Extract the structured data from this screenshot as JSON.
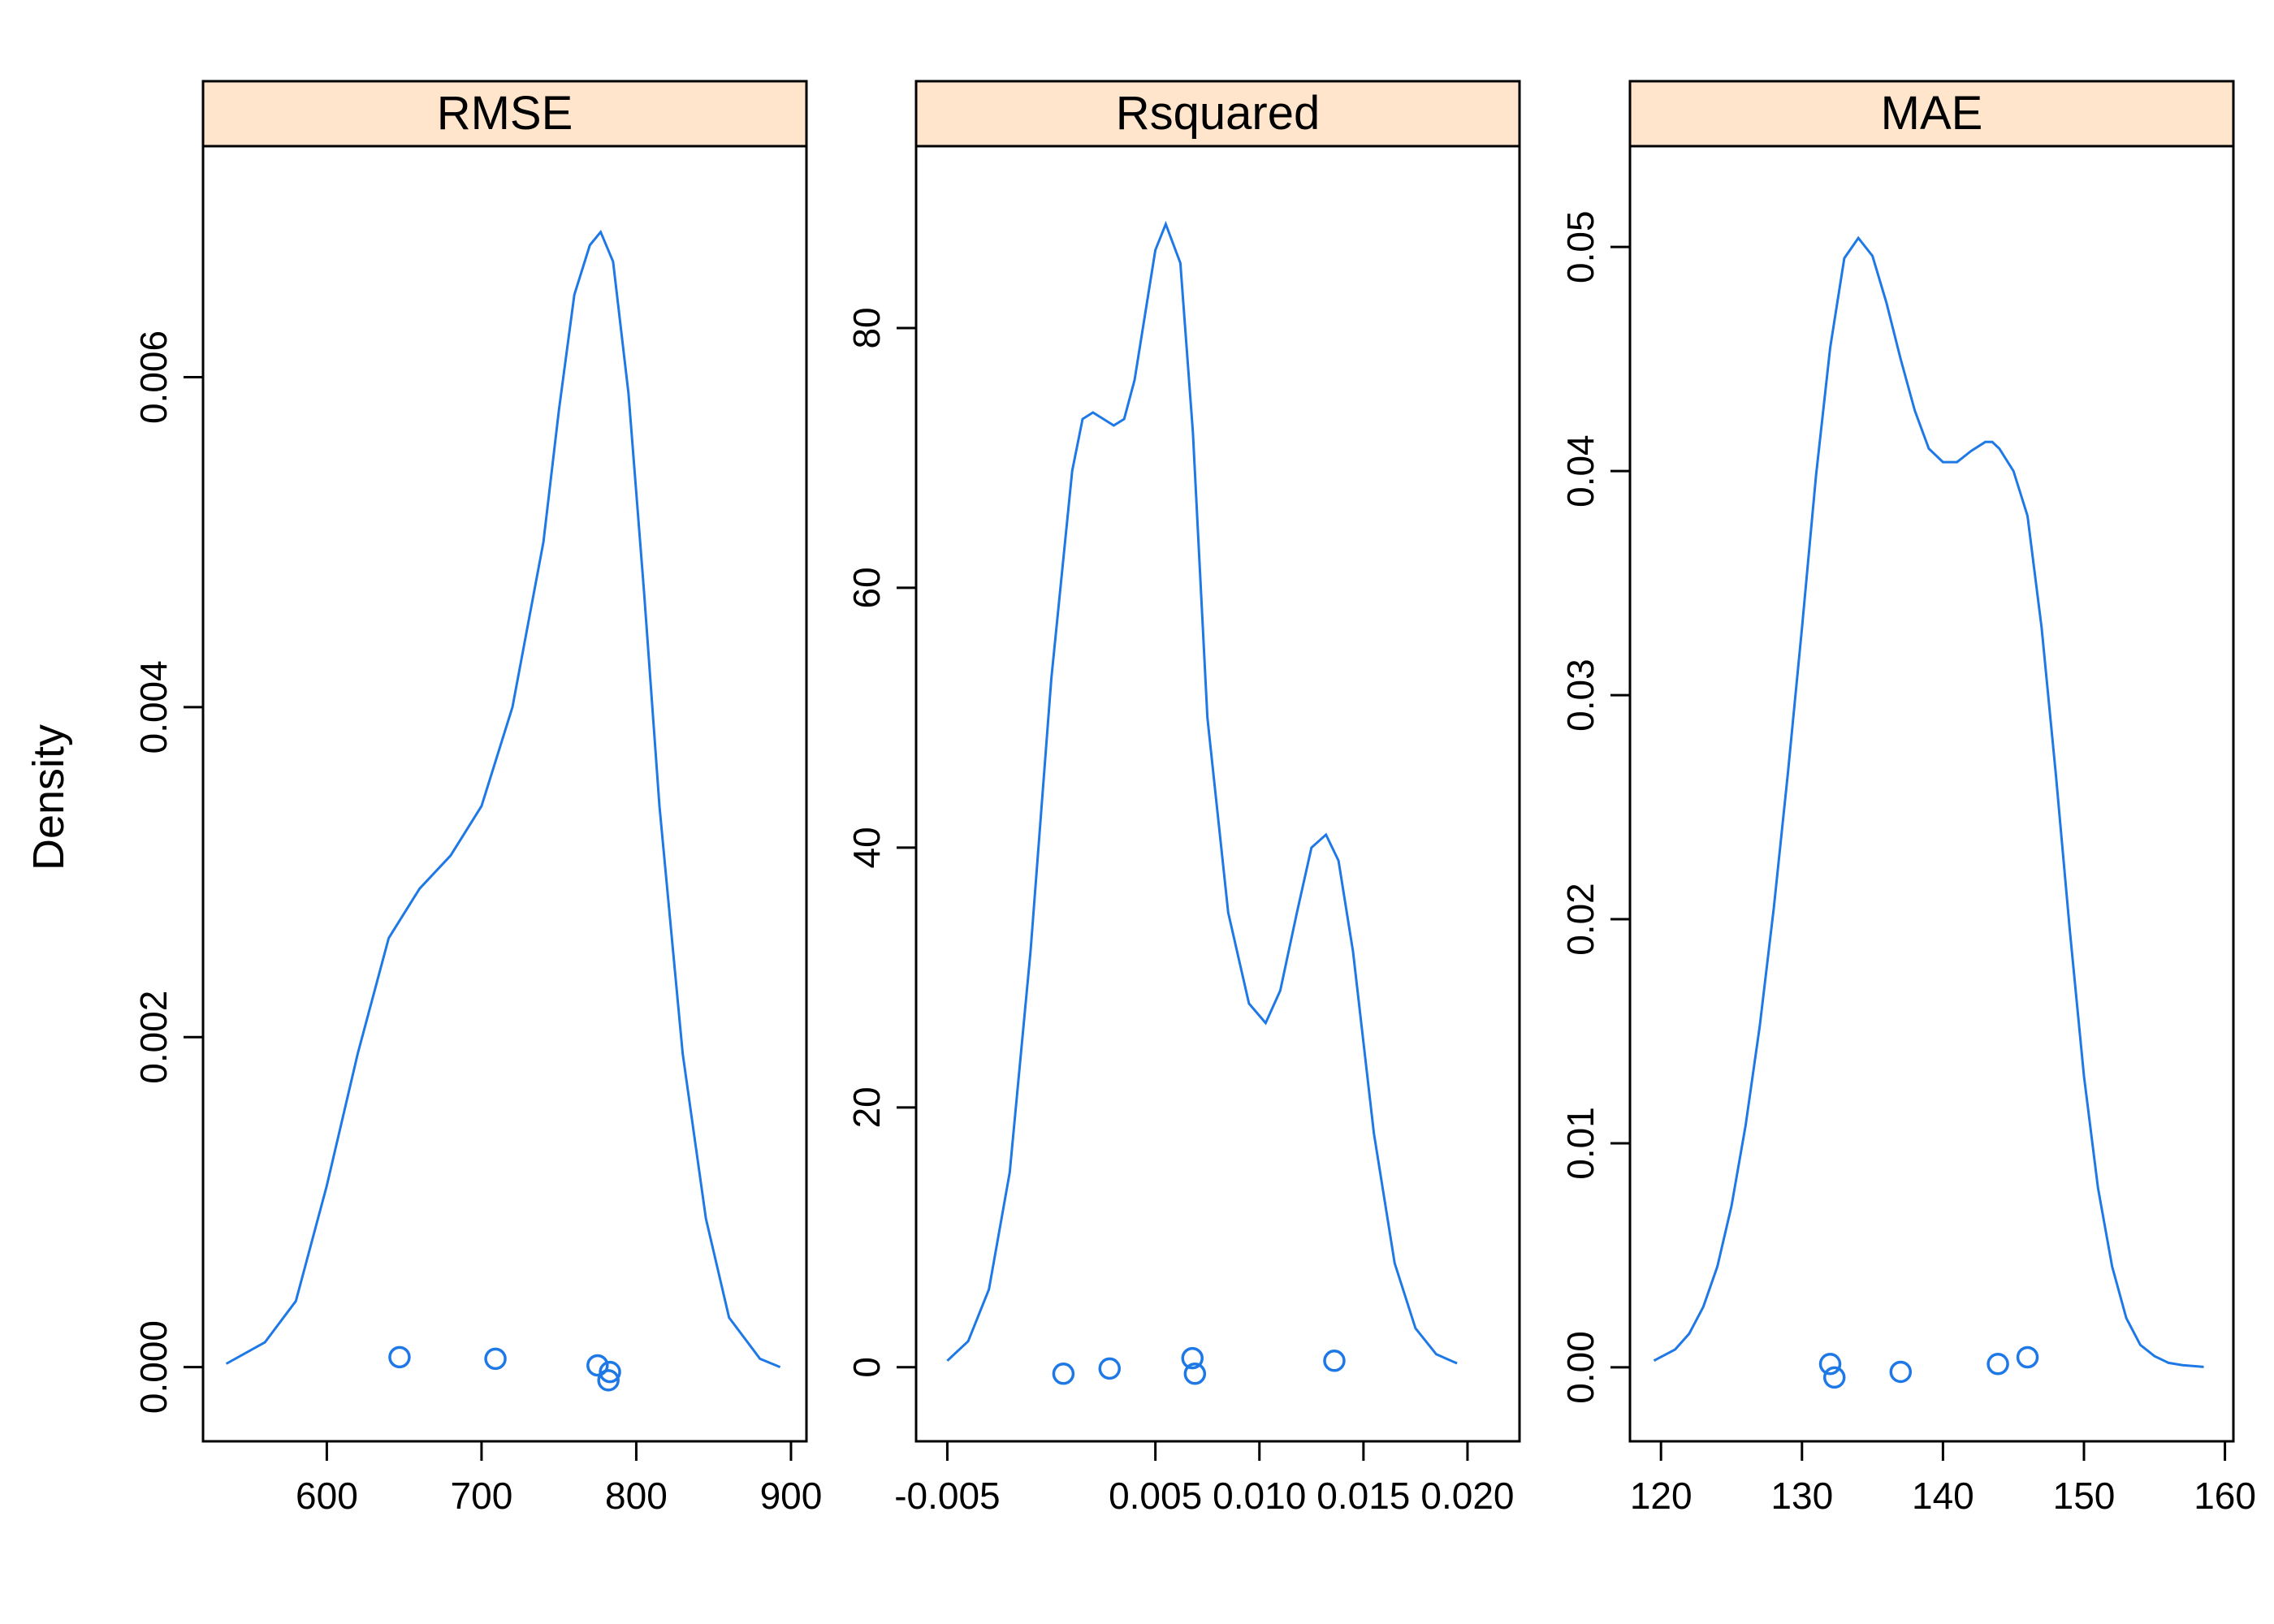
{
  "colors": {
    "curve": "#1E78E6",
    "strip_fill": "#FFE5CC",
    "frame": "#000000",
    "background": "#FFFFFF"
  },
  "chart_data": {
    "type": "line",
    "ylabel": "Density",
    "xlabel": "",
    "grid": false,
    "legend": "none",
    "panels": [
      {
        "strip": "RMSE",
        "xlim": [
          520,
          910
        ],
        "ylim": [
          -0.00045,
          0.0074
        ],
        "xticks": [
          600,
          700,
          800,
          900
        ],
        "xtick_labels": [
          "600",
          "700",
          "800",
          "900"
        ],
        "yticks": [
          0.0,
          0.002,
          0.004,
          0.006
        ],
        "ytick_labels": [
          "0.000",
          "0.002",
          "0.004",
          "0.006"
        ],
        "density": {
          "x": [
            535,
            560,
            580,
            600,
            620,
            640,
            660,
            680,
            700,
            720,
            740,
            750,
            760,
            770,
            777,
            785,
            795,
            805,
            815,
            830,
            845,
            860,
            880,
            893
          ],
          "y": [
            2e-05,
            0.00015,
            0.0004,
            0.0011,
            0.0019,
            0.0026,
            0.0029,
            0.0031,
            0.0034,
            0.004,
            0.005,
            0.0058,
            0.0065,
            0.0068,
            0.00688,
            0.0067,
            0.0059,
            0.0047,
            0.0034,
            0.0019,
            0.0009,
            0.0003,
            5e-05,
            0.0
          ]
        },
        "points": [
          {
            "x": 647,
            "y": 6e-05
          },
          {
            "x": 709,
            "y": 5e-05
          },
          {
            "x": 775,
            "y": 1e-05
          },
          {
            "x": 783,
            "y": -3e-05
          },
          {
            "x": 782,
            "y": -8e-05
          }
        ]
      },
      {
        "strip": "Rsquared",
        "xlim": [
          -0.0065,
          0.0225
        ],
        "ylim": [
          -5.7,
          94
        ],
        "xticks": [
          -0.005,
          0.005,
          0.01,
          0.015,
          0.02
        ],
        "xtick_labels": [
          "-0.005",
          "0.005",
          "0.010",
          "0.015",
          "0.020"
        ],
        "yticks": [
          0,
          20,
          40,
          60,
          80
        ],
        "ytick_labels": [
          "0",
          "20",
          "40",
          "60",
          "80"
        ],
        "density": {
          "x": [
            -0.005,
            -0.004,
            -0.003,
            -0.002,
            -0.001,
            0.0,
            0.001,
            0.0015,
            0.002,
            0.0025,
            0.003,
            0.0035,
            0.004,
            0.0045,
            0.005,
            0.0055,
            0.0062,
            0.0068,
            0.0075,
            0.0085,
            0.0095,
            0.0103,
            0.011,
            0.0118,
            0.0125,
            0.0132,
            0.0138,
            0.0145,
            0.0155,
            0.0165,
            0.0175,
            0.0185,
            0.0195
          ],
          "y": [
            0.5,
            2,
            6,
            15,
            32,
            53,
            69,
            73,
            73.5,
            73,
            72.5,
            73,
            76,
            81,
            86,
            88,
            85,
            72,
            50,
            35,
            28,
            26.5,
            29,
            35,
            40,
            41,
            39,
            32,
            18,
            8,
            3,
            1,
            0.3
          ]
        },
        "points": [
          {
            "x": 0.00058,
            "y": -0.5
          },
          {
            "x": 0.0028,
            "y": -0.1
          },
          {
            "x": 0.00678,
            "y": 0.7
          },
          {
            "x": 0.0069,
            "y": -0.5
          },
          {
            "x": 0.0136,
            "y": 0.5
          }
        ]
      },
      {
        "strip": "MAE",
        "xlim": [
          117.8,
          160.6
        ],
        "ylim": [
          -0.0033,
          0.0545
        ],
        "xticks": [
          120,
          130,
          140,
          150,
          160
        ],
        "xtick_labels": [
          "120",
          "130",
          "140",
          "150",
          "160"
        ],
        "yticks": [
          0.0,
          0.01,
          0.02,
          0.03,
          0.04,
          0.05
        ],
        "ytick_labels": [
          "0.00",
          "0.01",
          "0.02",
          "0.03",
          "0.04",
          "0.05"
        ],
        "density": {
          "x": [
            119.5,
            121,
            122,
            123,
            124,
            125,
            126,
            127,
            128,
            129,
            130,
            131,
            132,
            133,
            134,
            135,
            136,
            137,
            138,
            139,
            140,
            141,
            142,
            143,
            143.5,
            144,
            145,
            146,
            147,
            148,
            149,
            150,
            151,
            152,
            153,
            154,
            155,
            156,
            157,
            158.5
          ],
          "y": [
            0.0003,
            0.0008,
            0.0015,
            0.0027,
            0.0045,
            0.0072,
            0.0108,
            0.0152,
            0.0205,
            0.0265,
            0.033,
            0.0398,
            0.0455,
            0.0495,
            0.0504,
            0.0496,
            0.0475,
            0.045,
            0.0427,
            0.041,
            0.0404,
            0.0404,
            0.0409,
            0.0413,
            0.0413,
            0.041,
            0.04,
            0.038,
            0.033,
            0.0265,
            0.0195,
            0.013,
            0.008,
            0.0045,
            0.0022,
            0.001,
            0.0005,
            0.0002,
            0.0001,
            2e-05
          ]
        },
        "points": [
          {
            "x": 132.0,
            "y": 0.00015
          },
          {
            "x": 132.3,
            "y": -0.00045
          },
          {
            "x": 137.0,
            "y": -0.0002
          },
          {
            "x": 143.9,
            "y": 0.00015
          },
          {
            "x": 146.0,
            "y": 0.00045
          }
        ]
      }
    ]
  }
}
